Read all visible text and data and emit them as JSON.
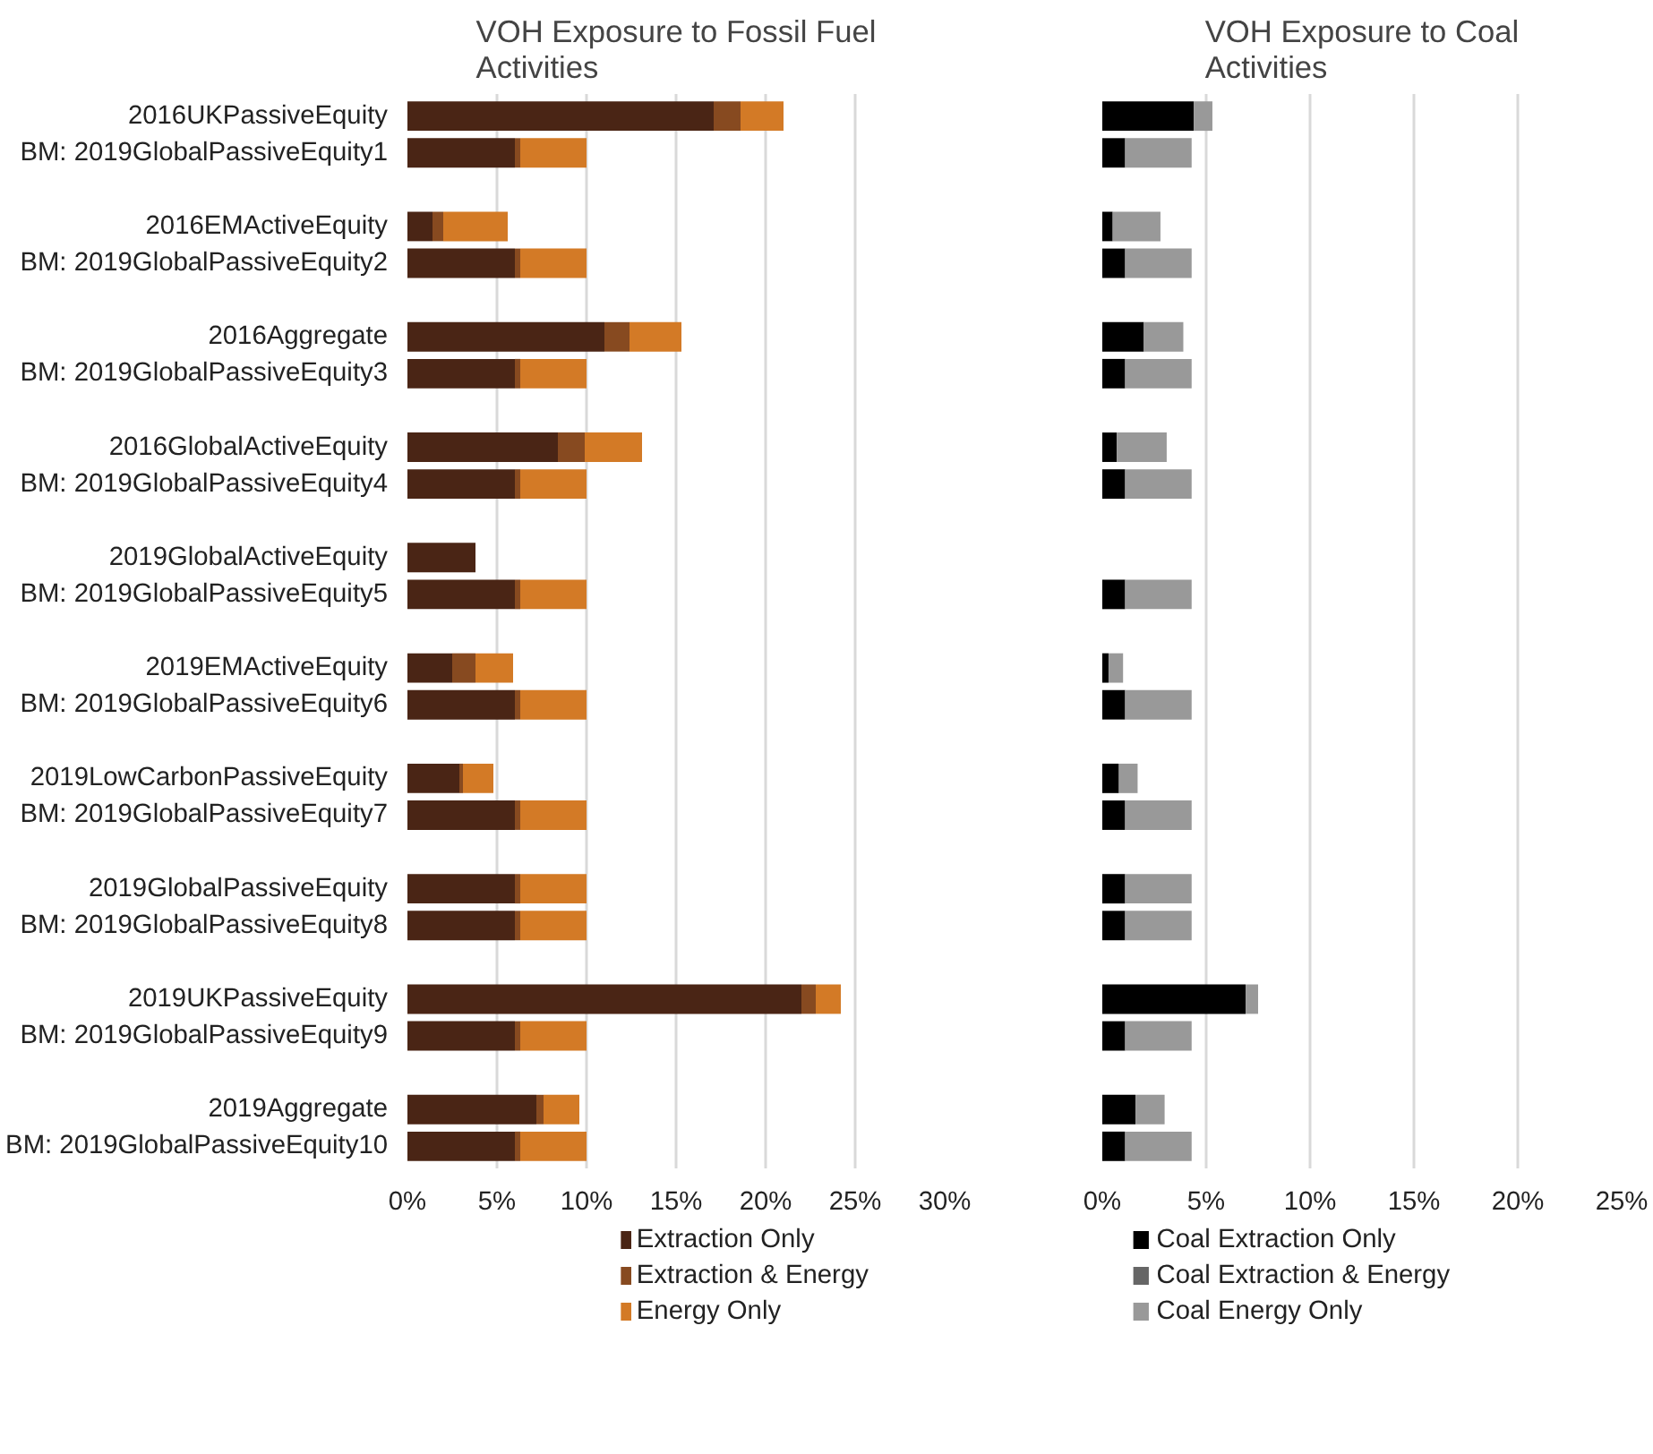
{
  "chart_data": [
    {
      "type": "bar",
      "orientation": "horizontal",
      "stacked": true,
      "title": "VOH Exposure to Fossil Fuel Activities",
      "categories": [
        "2016UKPassiveEquity",
        "BM: 2019GlobalPassiveEquity1",
        null,
        "2016EMActiveEquity",
        "BM: 2019GlobalPassiveEquity2",
        null,
        "2016Aggregate",
        "BM: 2019GlobalPassiveEquity3",
        null,
        "2016GlobalActiveEquity",
        "BM: 2019GlobalPassiveEquity4",
        null,
        "2019GlobalActiveEquity",
        "BM: 2019GlobalPassiveEquity5",
        null,
        "2019EMActiveEquity",
        "BM: 2019GlobalPassiveEquity6",
        null,
        "2019LowCarbonPassiveEquity",
        "BM: 2019GlobalPassiveEquity7",
        null,
        "2019GlobalPassiveEquity",
        "BM: 2019GlobalPassiveEquity8",
        null,
        "2019UKPassiveEquity",
        "BM: 2019GlobalPassiveEquity9",
        null,
        "2019Aggregate",
        "BM: 2019GlobalPassiveEquity10"
      ],
      "series": [
        {
          "name": "Extraction Only",
          "color": "#4a2515",
          "values": [
            17.1,
            6.0,
            null,
            1.4,
            6.0,
            null,
            11.0,
            6.0,
            null,
            8.4,
            6.0,
            null,
            3.8,
            6.0,
            null,
            2.5,
            6.0,
            null,
            2.9,
            6.0,
            null,
            6.0,
            6.0,
            null,
            22.0,
            6.0,
            null,
            7.2,
            6.0
          ]
        },
        {
          "name": "Extraction & Energy",
          "color": "#874a20",
          "values": [
            1.5,
            0.3,
            null,
            0.6,
            0.3,
            null,
            1.4,
            0.3,
            null,
            1.5,
            0.3,
            null,
            0,
            0.3,
            null,
            1.3,
            0.3,
            null,
            0.2,
            0.3,
            null,
            0.3,
            0.3,
            null,
            0.8,
            0.3,
            null,
            0.4,
            0.3
          ]
        },
        {
          "name": "Energy Only",
          "color": "#d37a26",
          "values": [
            2.4,
            3.7,
            null,
            3.6,
            3.7,
            null,
            2.9,
            3.7,
            null,
            3.2,
            3.7,
            null,
            0,
            3.7,
            null,
            2.1,
            3.7,
            null,
            1.7,
            3.7,
            null,
            3.7,
            3.7,
            null,
            1.4,
            3.7,
            null,
            2.0,
            3.7
          ]
        }
      ],
      "xlim": [
        0,
        30
      ],
      "xticks": [
        {
          "value": 0,
          "label": "0%"
        },
        {
          "value": 5,
          "label": "5%"
        },
        {
          "value": 10,
          "label": "10%"
        },
        {
          "value": 15,
          "label": "15%"
        },
        {
          "value": 20,
          "label": "20%"
        },
        {
          "value": 25,
          "label": "25%"
        },
        {
          "value": 30,
          "label": "30%"
        }
      ],
      "grid": "x",
      "legend": "bottom"
    },
    {
      "type": "bar",
      "orientation": "horizontal",
      "stacked": true,
      "title": "VOH Exposure to Coal Activities",
      "categories": [
        null,
        null,
        null,
        null,
        null,
        null,
        null,
        null,
        null,
        null,
        null,
        null,
        null,
        null,
        null,
        null,
        null,
        null,
        null,
        null,
        null,
        null,
        null,
        null,
        null,
        null,
        null,
        null,
        null
      ],
      "series": [
        {
          "name": "Coal Extraction Only",
          "color": "#000000",
          "values": [
            4.4,
            1.1,
            null,
            0.5,
            1.1,
            null,
            2.0,
            1.1,
            null,
            0.7,
            1.1,
            null,
            0,
            1.1,
            null,
            0.3,
            1.1,
            null,
            0.8,
            1.1,
            null,
            1.1,
            1.1,
            null,
            6.9,
            1.1,
            null,
            1.6,
            1.1
          ]
        },
        {
          "name": "Coal Extraction & Energy",
          "color": "#666666",
          "values": [
            0,
            0,
            null,
            0,
            0,
            null,
            0,
            0,
            null,
            0,
            0,
            null,
            0,
            0,
            null,
            0,
            0,
            null,
            0,
            0,
            null,
            0,
            0,
            null,
            0,
            0,
            null,
            0,
            0
          ]
        },
        {
          "name": "Coal Energy Only",
          "color": "#999999",
          "values": [
            0.9,
            3.2,
            null,
            2.3,
            3.2,
            null,
            1.9,
            3.2,
            null,
            2.4,
            3.2,
            null,
            0,
            3.2,
            null,
            0.7,
            3.2,
            null,
            0.9,
            3.2,
            null,
            3.2,
            3.2,
            null,
            0.6,
            3.2,
            null,
            1.4,
            3.2
          ]
        }
      ],
      "xlim": [
        0,
        25
      ],
      "xticks": [
        {
          "value": 0,
          "label": "0%"
        },
        {
          "value": 5,
          "label": "5%"
        },
        {
          "value": 10,
          "label": "10%"
        },
        {
          "value": 15,
          "label": "15%"
        },
        {
          "value": 20,
          "label": "20%"
        },
        {
          "value": 25,
          "label": "25%"
        }
      ],
      "grid": "x",
      "legend": "bottom",
      "tick_labels": "x"
    }
  ]
}
